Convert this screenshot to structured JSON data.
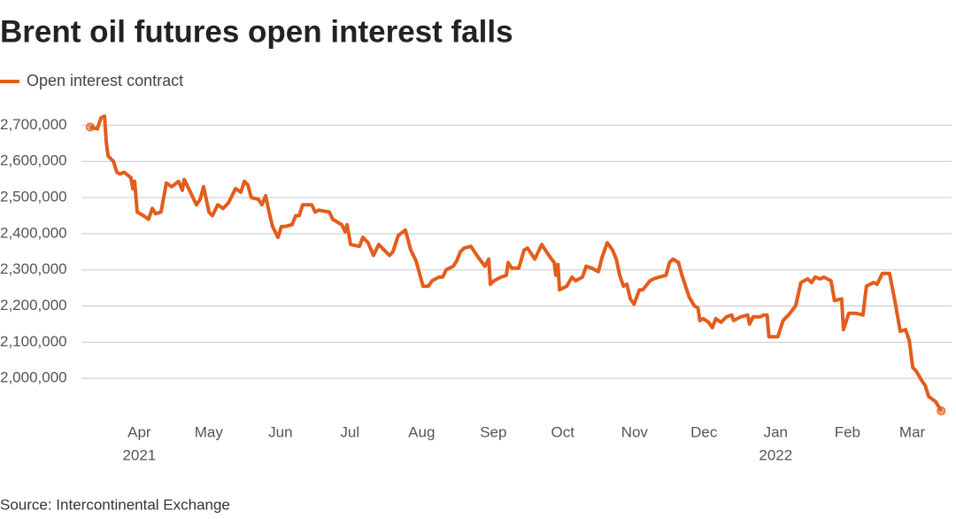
{
  "chart_data": {
    "type": "line",
    "title": "Brent oil futures open interest falls",
    "source": "Source: Intercontinental Exchange",
    "series": [
      {
        "name": "Open interest contract",
        "color": "#e35d1c",
        "x": [
          9.8,
          12.9,
          14.4,
          16,
          16.7,
          17.5,
          19.8,
          21.3,
          22.8,
          24.4,
          27.4,
          28.2,
          29,
          30.1,
          32.8,
          35,
          36.6,
          38.1,
          40.4,
          42.7,
          45,
          48,
          49.6,
          50.4,
          52.7,
          55.7,
          57.3,
          58.8,
          61.1,
          62.6,
          64.9,
          67.2,
          69.5,
          72.6,
          74.9,
          76.4,
          77.9,
          79.4,
          82.5,
          84,
          85.6,
          87.1,
          88.6,
          90.9,
          92.4,
          94,
          97,
          98.6,
          100.1,
          101.6,
          105.5,
          107,
          108.5,
          113.1,
          114.6,
          118.5,
          120,
          120.8,
          122.3,
          126.1,
          127.6,
          129.9,
          132.2,
          134.5,
          136.8,
          139.1,
          140.6,
          142.9,
          146,
          148.3,
          150.6,
          153.6,
          155.9,
          157.5,
          160.5,
          162.1,
          163.6,
          166.7,
          168.2,
          169.7,
          171.3,
          174.3,
          177.4,
          180.4,
          182,
          182.7,
          184.3,
          187.3,
          189.6,
          190.4,
          191.9,
          195,
          197.3,
          198.8,
          201.9,
          204.9,
          208,
          210.3,
          211,
          211.9,
          212.6,
          215.7,
          218,
          219.5,
          222.5,
          224.1,
          226.4,
          229.4,
          231,
          233.2,
          235.5,
          237.1,
          238.6,
          240.2,
          241.7,
          243.2,
          244.8,
          247.1,
          248.6,
          251.7,
          253.2,
          255.5,
          258.6,
          260.1,
          261.6,
          264,
          265.5,
          268.6,
          270.9,
          272.4,
          273.2,
          274.7,
          277,
          278.6,
          280.1,
          282.4,
          284.7,
          287,
          287.8,
          290.9,
          293.9,
          294.7,
          296.2,
          299.3,
          300.8,
          302.3,
          303.1,
          306.9,
          309.2,
          311.5,
          314.6,
          316.9,
          319.9,
          321.5,
          323,
          325.3,
          326.8,
          329.9,
          331.4,
          334.5,
          335.3,
          337.6,
          340.6,
          343.7,
          345.2,
          348.3,
          349.8,
          352.1,
          355.2,
          357.5,
          359.8,
          362.1,
          363.7,
          365.2,
          366.7,
          369,
          370.6,
          372.1,
          375.2,
          377.5
        ],
        "values": [
          2695000,
          2690000,
          2720000,
          2725000,
          2655000,
          2615000,
          2600000,
          2570000,
          2565000,
          2570000,
          2555000,
          2525000,
          2545000,
          2460000,
          2450000,
          2440000,
          2470000,
          2455000,
          2460000,
          2540000,
          2530000,
          2545000,
          2520000,
          2550000,
          2520000,
          2480000,
          2495000,
          2530000,
          2460000,
          2450000,
          2480000,
          2470000,
          2485000,
          2525000,
          2515000,
          2545000,
          2535000,
          2500000,
          2495000,
          2480000,
          2505000,
          2460000,
          2420000,
          2390000,
          2420000,
          2420000,
          2425000,
          2450000,
          2450000,
          2480000,
          2480000,
          2460000,
          2465000,
          2460000,
          2440000,
          2425000,
          2405000,
          2425000,
          2370000,
          2365000,
          2390000,
          2375000,
          2340000,
          2370000,
          2355000,
          2340000,
          2350000,
          2395000,
          2410000,
          2355000,
          2325000,
          2255000,
          2255000,
          2270000,
          2280000,
          2280000,
          2300000,
          2310000,
          2325000,
          2350000,
          2360000,
          2365000,
          2335000,
          2310000,
          2330000,
          2260000,
          2270000,
          2280000,
          2285000,
          2320000,
          2305000,
          2305000,
          2355000,
          2360000,
          2330000,
          2370000,
          2340000,
          2320000,
          2285000,
          2315000,
          2245000,
          2255000,
          2280000,
          2270000,
          2280000,
          2310000,
          2305000,
          2295000,
          2335000,
          2375000,
          2355000,
          2330000,
          2285000,
          2255000,
          2260000,
          2220000,
          2205000,
          2245000,
          2245000,
          2270000,
          2275000,
          2280000,
          2285000,
          2320000,
          2330000,
          2320000,
          2285000,
          2225000,
          2200000,
          2195000,
          2160000,
          2165000,
          2155000,
          2140000,
          2165000,
          2155000,
          2170000,
          2175000,
          2160000,
          2170000,
          2175000,
          2150000,
          2170000,
          2170000,
          2175000,
          2175000,
          2115000,
          2115000,
          2160000,
          2175000,
          2200000,
          2265000,
          2275000,
          2265000,
          2280000,
          2275000,
          2280000,
          2270000,
          2215000,
          2220000,
          2135000,
          2180000,
          2180000,
          2175000,
          2255000,
          2265000,
          2260000,
          2290000,
          2290000,
          2215000,
          2130000,
          2135000,
          2105000,
          2030000,
          2020000,
          1995000,
          1980000,
          1950000,
          1935000,
          1910000
        ]
      }
    ],
    "xlim": [
      6,
      382
    ],
    "xticks": [
      {
        "value": 31,
        "label": "Apr"
      },
      {
        "value": 61,
        "label": "May"
      },
      {
        "value": 92,
        "label": "Jun"
      },
      {
        "value": 122,
        "label": "Jul"
      },
      {
        "value": 153,
        "label": "Aug"
      },
      {
        "value": 184,
        "label": "Sep"
      },
      {
        "value": 214,
        "label": "Oct"
      },
      {
        "value": 245,
        "label": "Nov"
      },
      {
        "value": 275,
        "label": "Dec"
      },
      {
        "value": 306,
        "label": "Jan"
      },
      {
        "value": 337,
        "label": "Feb"
      },
      {
        "value": 365,
        "label": "Mar"
      }
    ],
    "year_labels": [
      {
        "value": 31,
        "label": "2021"
      },
      {
        "value": 306,
        "label": "2022"
      }
    ],
    "ylim": [
      1900000,
      2750000
    ],
    "yticks": [
      {
        "value": 2000000,
        "label": "2,000,000"
      },
      {
        "value": 2100000,
        "label": "2,100,000"
      },
      {
        "value": 2200000,
        "label": "2,200,000"
      },
      {
        "value": 2300000,
        "label": "2,300,000"
      },
      {
        "value": 2400000,
        "label": "2,400,000"
      },
      {
        "value": 2500000,
        "label": "2,500,000"
      },
      {
        "value": 2600000,
        "label": "2,600,000"
      },
      {
        "value": 2700000,
        "label": "2,700,000"
      }
    ],
    "grid": true,
    "legend": "top-left"
  }
}
